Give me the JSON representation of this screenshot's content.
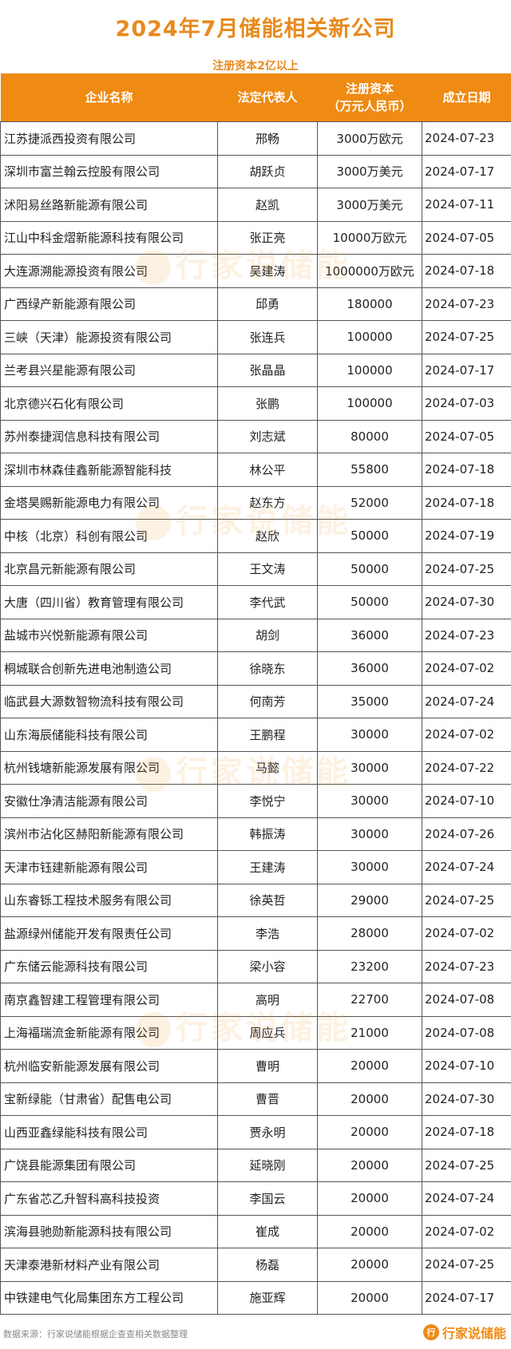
{
  "title": "2024年7月储能相关新公司",
  "subtitle": "注册资本2亿以上",
  "colors": {
    "accent": "#ef8a12",
    "title": "#e88a1e"
  },
  "table": {
    "headers": [
      "企业名称",
      "法定代表人",
      "注册资本",
      "（万元人民币）",
      "成立日期"
    ],
    "rows": [
      [
        "江苏捷派西投资有限公司",
        "邢畅",
        "3000万欧元",
        "2024-07-23"
      ],
      [
        "深圳市富兰翰云控股有限公司",
        "胡跃贞",
        "3000万美元",
        "2024-07-17"
      ],
      [
        "沭阳易丝路新能源有限公司",
        "赵凯",
        "3000万美元",
        "2024-07-11"
      ],
      [
        "江山中科金熠新能源科技有限公司",
        "张正亮",
        "10000万欧元",
        "2024-07-05"
      ],
      [
        "大连源溯能源投资有限公司",
        "吴建涛",
        "1000000万欧元",
        "2024-07-18"
      ],
      [
        "广西绿产新能源有限公司",
        "邱勇",
        "180000",
        "2024-07-23"
      ],
      [
        "三峡（天津）能源投资有限公司",
        "张连兵",
        "100000",
        "2024-07-25"
      ],
      [
        "兰考县兴星能源有限公司",
        "张晶晶",
        "100000",
        "2024-07-17"
      ],
      [
        "北京德兴石化有限公司",
        "张鹏",
        "100000",
        "2024-07-03"
      ],
      [
        "苏州泰捷润信息科技有限公司",
        "刘志斌",
        "80000",
        "2024-07-05"
      ],
      [
        "深圳市林森佳鑫新能源智能科技",
        "林公平",
        "55800",
        "2024-07-18"
      ],
      [
        "金塔昊赐新能源电力有限公司",
        "赵东方",
        "52000",
        "2024-07-18"
      ],
      [
        "中核（北京）科创有限公司",
        "赵欣",
        "50000",
        "2024-07-19"
      ],
      [
        "北京昌元新能源有限公司",
        "王文涛",
        "50000",
        "2024-07-25"
      ],
      [
        "大唐（四川省）教育管理有限公司",
        "李代武",
        "50000",
        "2024-07-30"
      ],
      [
        "盐城市兴悦新能源有限公司",
        "胡剑",
        "36000",
        "2024-07-23"
      ],
      [
        "桐城联合创新先进电池制造公司",
        "徐晓东",
        "36000",
        "2024-07-02"
      ],
      [
        "临武县大源数智物流科技有限公司",
        "何南芳",
        "35000",
        "2024-07-24"
      ],
      [
        "山东海辰储能科技有限公司",
        "王鹏程",
        "30000",
        "2024-07-02"
      ],
      [
        "杭州钱塘新能源发展有限公司",
        "马懿",
        "30000",
        "2024-07-22"
      ],
      [
        "安徽仕净清洁能源有限公司",
        "李悦宁",
        "30000",
        "2024-07-10"
      ],
      [
        "滨州市沾化区赫阳新能源有限公司",
        "韩振涛",
        "30000",
        "2024-07-26"
      ],
      [
        "天津市钰建新能源有限公司",
        "王建涛",
        "30000",
        "2024-07-24"
      ],
      [
        "山东睿铄工程技术服务有限公司",
        "徐英哲",
        "29000",
        "2024-07-25"
      ],
      [
        "盐源绿州储能开发有限责任公司",
        "李浩",
        "28000",
        "2024-07-02"
      ],
      [
        "广东储云能源科技有限公司",
        "梁小容",
        "23200",
        "2024-07-23"
      ],
      [
        "南京鑫智建工程管理有限公司",
        "高明",
        "22700",
        "2024-07-08"
      ],
      [
        "上海福瑞流金新能源有限公司",
        "周应兵",
        "21000",
        "2024-07-08"
      ],
      [
        "杭州临安新能源发展有限公司",
        "曹明",
        "20000",
        "2024-07-10"
      ],
      [
        "宝新绿能（甘肃省）配售电公司",
        "曹晋",
        "20000",
        "2024-07-30"
      ],
      [
        "山西亚鑫绿能科技有限公司",
        "贾永明",
        "20000",
        "2024-07-18"
      ],
      [
        "广饶县能源集团有限公司",
        "延晓刚",
        "20000",
        "2024-07-25"
      ],
      [
        "广东省芯乙升智科高科技投资",
        "李国云",
        "20000",
        "2024-07-24"
      ],
      [
        "滨海县驰勋新能源科技有限公司",
        "崔成",
        "20000",
        "2024-07-02"
      ],
      [
        "天津泰港新材料产业有限公司",
        "杨磊",
        "20000",
        "2024-07-25"
      ],
      [
        "中铁建电气化局集团东方工程公司",
        "施亚辉",
        "20000",
        "2024-07-17"
      ]
    ]
  },
  "watermark": "行家说储能",
  "footer": {
    "source": "数据来源：行家说储能根据企查查相关数据整理",
    "logo_text": "行家说储能"
  }
}
